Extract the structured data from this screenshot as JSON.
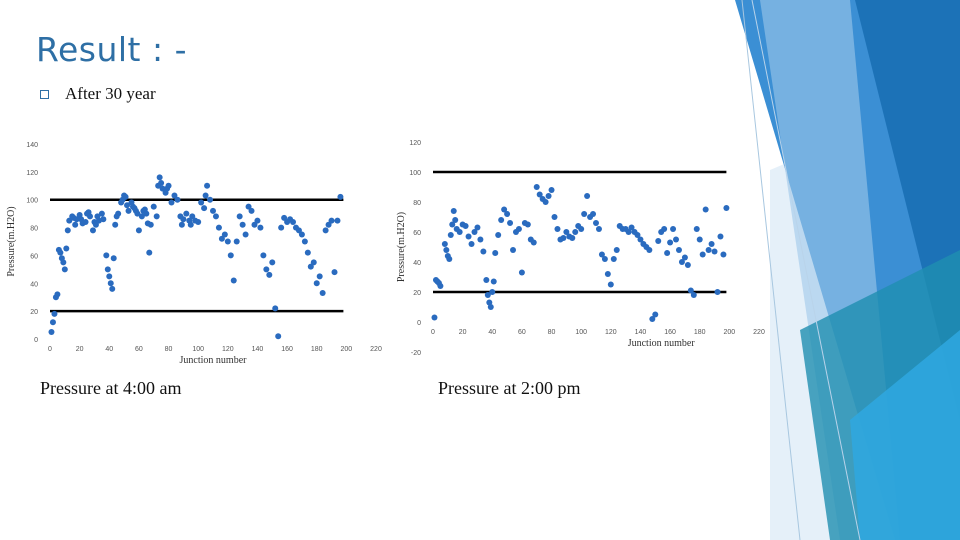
{
  "slide": {
    "title": "Result : -",
    "bullet": "After 30 year",
    "caption_left": "Pressure at 4:00 am",
    "caption_right": "Pressure at 2:00 pm"
  },
  "colors": {
    "title": "#2e6fa5",
    "point": "#2a6bbf",
    "threshold_line": "#000000",
    "deco_light": "#9ec8ea",
    "deco_mid": "#3b8fd4",
    "deco_dark": "#1a6fb4",
    "deco_teal": "#1f8fb0"
  },
  "chart_data": [
    {
      "type": "scatter",
      "xlabel": "Junction number",
      "ylabel": "Pressure(m.H2O)",
      "xlim": [
        0,
        220
      ],
      "ylim": [
        0,
        140
      ],
      "xticks": [
        0,
        20,
        40,
        60,
        80,
        100,
        120,
        140,
        160,
        180,
        200,
        220
      ],
      "yticks": [
        0,
        20,
        40,
        60,
        80,
        100,
        120,
        140
      ],
      "grid": false,
      "hlines": [
        {
          "y": 100,
          "x_start": 0,
          "x_end": 198
        },
        {
          "y": 20,
          "x_start": 0,
          "x_end": 198
        }
      ],
      "x": [
        1,
        2,
        3,
        4,
        5,
        6,
        7,
        8,
        9,
        10,
        11,
        12,
        13,
        15,
        16,
        17,
        18,
        20,
        21,
        22,
        24,
        25,
        26,
        27,
        29,
        30,
        31,
        32,
        33,
        35,
        36,
        38,
        39,
        40,
        41,
        42,
        43,
        44,
        45,
        46,
        48,
        49,
        50,
        51,
        52,
        53,
        55,
        56,
        57,
        58,
        59,
        60,
        62,
        63,
        64,
        65,
        66,
        67,
        68,
        70,
        72,
        73,
        74,
        75,
        76,
        78,
        79,
        80,
        82,
        84,
        86,
        88,
        89,
        90,
        92,
        94,
        95,
        96,
        98,
        100,
        102,
        104,
        105,
        106,
        108,
        110,
        112,
        114,
        116,
        118,
        120,
        122,
        124,
        126,
        128,
        130,
        132,
        134,
        136,
        138,
        140,
        142,
        144,
        146,
        148,
        150,
        152,
        154,
        156,
        158,
        160,
        162,
        164,
        166,
        168,
        170,
        172,
        174,
        176,
        178,
        180,
        182,
        184,
        186,
        188,
        190,
        192,
        194,
        196
      ],
      "y": [
        5,
        12,
        18,
        30,
        32,
        64,
        62,
        58,
        55,
        50,
        65,
        78,
        85,
        88,
        87,
        82,
        86,
        89,
        86,
        83,
        84,
        90,
        91,
        88,
        78,
        84,
        82,
        88,
        85,
        90,
        86,
        60,
        50,
        45,
        40,
        36,
        58,
        82,
        88,
        90,
        98,
        100,
        103,
        102,
        96,
        92,
        98,
        95,
        94,
        92,
        90,
        78,
        88,
        92,
        93,
        90,
        83,
        62,
        82,
        95,
        88,
        110,
        116,
        112,
        108,
        105,
        108,
        110,
        98,
        103,
        100,
        88,
        82,
        86,
        90,
        85,
        82,
        88,
        85,
        84,
        98,
        94,
        103,
        110,
        100,
        92,
        88,
        80,
        72,
        75,
        70,
        60,
        42,
        70,
        88,
        82,
        75,
        95,
        92,
        82,
        85,
        80,
        60,
        50,
        46,
        55,
        22,
        2,
        80,
        87,
        84,
        86,
        84,
        80,
        78,
        75,
        70,
        62,
        52,
        55,
        40,
        45,
        33,
        78,
        82,
        85,
        48,
        85,
        102
      ],
      "series": []
    },
    {
      "type": "scatter",
      "xlabel": "Junction number",
      "ylabel": "Pressure(m.H2O)",
      "xlim": [
        0,
        220
      ],
      "ylim": [
        -20,
        120
      ],
      "xticks": [
        0,
        20,
        40,
        60,
        80,
        100,
        120,
        140,
        160,
        180,
        200,
        220
      ],
      "yticks": [
        -20,
        0,
        20,
        40,
        60,
        80,
        100,
        120
      ],
      "grid": false,
      "hlines": [
        {
          "y": 100,
          "x_start": 0,
          "x_end": 198
        },
        {
          "y": 20,
          "x_start": 0,
          "x_end": 198
        }
      ],
      "x": [
        1,
        2,
        3,
        4,
        5,
        8,
        9,
        10,
        11,
        12,
        13,
        14,
        15,
        16,
        18,
        20,
        22,
        24,
        26,
        28,
        30,
        32,
        34,
        36,
        37,
        38,
        39,
        40,
        41,
        42,
        44,
        46,
        48,
        50,
        52,
        54,
        56,
        58,
        60,
        62,
        64,
        66,
        68,
        70,
        72,
        74,
        76,
        78,
        80,
        82,
        84,
        86,
        88,
        90,
        92,
        94,
        96,
        98,
        100,
        102,
        104,
        106,
        108,
        110,
        112,
        114,
        116,
        118,
        120,
        122,
        124,
        126,
        128,
        130,
        132,
        134,
        136,
        138,
        140,
        142,
        144,
        146,
        148,
        150,
        152,
        154,
        156,
        158,
        160,
        162,
        164,
        166,
        168,
        170,
        172,
        174,
        176,
        178,
        180,
        182,
        184,
        186,
        188,
        190,
        192,
        194,
        196,
        198
      ],
      "y": [
        3,
        28,
        27,
        26,
        24,
        52,
        48,
        44,
        42,
        58,
        65,
        74,
        68,
        62,
        60,
        65,
        64,
        57,
        52,
        60,
        63,
        55,
        47,
        28,
        18,
        13,
        10,
        20,
        27,
        46,
        58,
        68,
        75,
        72,
        66,
        48,
        60,
        62,
        33,
        66,
        65,
        55,
        53,
        90,
        85,
        82,
        80,
        84,
        88,
        70,
        62,
        55,
        56,
        60,
        57,
        56,
        60,
        64,
        62,
        72,
        84,
        70,
        72,
        66,
        62,
        45,
        42,
        32,
        25,
        42,
        48,
        64,
        62,
        62,
        60,
        63,
        60,
        58,
        55,
        52,
        50,
        48,
        2,
        5,
        54,
        60,
        62,
        46,
        53,
        62,
        55,
        48,
        40,
        43,
        38,
        21,
        18,
        62,
        55,
        45,
        75,
        48,
        52,
        47,
        20,
        57,
        45,
        76
      ],
      "series": []
    }
  ]
}
